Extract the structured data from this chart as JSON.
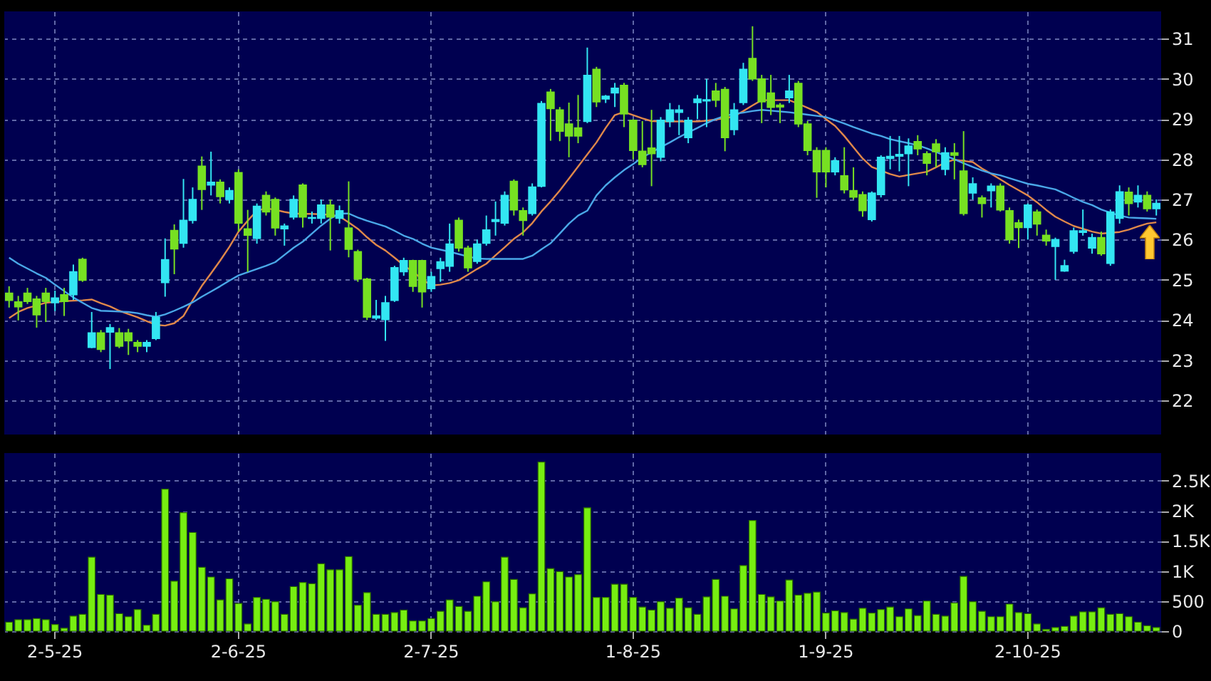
{
  "chart_data": [
    {
      "type": "candlestick",
      "categories": [
        null,
        null,
        null,
        null,
        null,
        null,
        null,
        null,
        null,
        null,
        null,
        null,
        null,
        null,
        null,
        null,
        null,
        null,
        null,
        null,
        null,
        null,
        null,
        null,
        null,
        null,
        null,
        null,
        null,
        null,
        null,
        null,
        null,
        null,
        null,
        null,
        null,
        null,
        null,
        null,
        null,
        null,
        null,
        null,
        null,
        null,
        null,
        null,
        null,
        null,
        null,
        null,
        null,
        null,
        null,
        null,
        null,
        null,
        null,
        null,
        null,
        null,
        null,
        null,
        null,
        null,
        null,
        null,
        null,
        null,
        null,
        null,
        null,
        null,
        null,
        null,
        null,
        null,
        null,
        null,
        null,
        null,
        null,
        null,
        null,
        null,
        null,
        null,
        null,
        null,
        null,
        null,
        null,
        null,
        null,
        null,
        null,
        null,
        null,
        null,
        null,
        null,
        null,
        null,
        null,
        null,
        null,
        null,
        null,
        null,
        null,
        null,
        null,
        null,
        null,
        null,
        null,
        null,
        null,
        null,
        null,
        null,
        null,
        null,
        null,
        null
      ],
      "ohlc": [
        [
          24.67,
          24.84,
          24.31,
          24.49
        ],
        [
          24.45,
          24.6,
          23.99,
          24.33
        ],
        [
          24.67,
          24.8,
          24.4,
          24.46
        ],
        [
          24.52,
          24.6,
          23.81,
          24.13
        ],
        [
          24.67,
          24.8,
          23.95,
          24.46
        ],
        [
          24.43,
          24.73,
          24.22,
          24.55
        ],
        [
          24.63,
          24.8,
          24.1,
          24.46
        ],
        [
          24.63,
          25.38,
          24.5,
          25.2
        ],
        [
          25.51,
          25.55,
          24.95,
          24.99
        ],
        [
          23.32,
          24.2,
          23.3,
          23.68
        ],
        [
          23.68,
          23.75,
          23.2,
          23.27
        ],
        [
          23.7,
          23.9,
          22.78,
          23.81
        ],
        [
          23.68,
          23.8,
          23.3,
          23.35
        ],
        [
          23.68,
          23.78,
          23.13,
          23.48
        ],
        [
          23.44,
          23.5,
          23.2,
          23.35
        ],
        [
          23.35,
          23.5,
          23.2,
          23.44
        ],
        [
          23.54,
          24.2,
          23.5,
          24.07
        ],
        [
          24.93,
          26.03,
          24.58,
          25.5
        ],
        [
          26.23,
          26.38,
          25.14,
          25.77
        ],
        [
          25.91,
          27.51,
          25.8,
          26.48
        ],
        [
          26.48,
          27.3,
          26.4,
          27.0
        ],
        [
          27.83,
          28.07,
          26.74,
          27.25
        ],
        [
          27.36,
          28.19,
          27.1,
          27.43
        ],
        [
          27.43,
          27.5,
          26.9,
          27.07
        ],
        [
          27.0,
          27.3,
          26.9,
          27.22
        ],
        [
          27.67,
          27.75,
          26.2,
          26.41
        ],
        [
          26.27,
          26.74,
          25.2,
          26.11
        ],
        [
          26.03,
          26.9,
          25.9,
          26.83
        ],
        [
          27.1,
          27.2,
          26.6,
          26.69
        ],
        [
          27.0,
          27.05,
          26.1,
          26.29
        ],
        [
          26.27,
          26.4,
          25.85,
          26.34
        ],
        [
          26.56,
          27.1,
          26.5,
          27.0
        ],
        [
          27.36,
          27.4,
          26.3,
          26.56
        ],
        [
          26.53,
          26.7,
          26.4,
          26.55
        ],
        [
          26.53,
          27.0,
          26.4,
          26.86
        ],
        [
          26.86,
          27.0,
          25.73,
          26.56
        ],
        [
          26.53,
          26.85,
          26.4,
          26.72
        ],
        [
          26.29,
          27.45,
          25.56,
          25.76
        ],
        [
          25.7,
          25.75,
          24.95,
          25.02
        ],
        [
          25.02,
          25.05,
          24.0,
          24.07
        ],
        [
          24.05,
          24.5,
          24.0,
          24.1
        ],
        [
          24.01,
          24.6,
          23.48,
          24.43
        ],
        [
          24.49,
          25.35,
          24.45,
          25.3
        ],
        [
          25.2,
          25.55,
          25.1,
          25.48
        ],
        [
          25.48,
          25.5,
          24.7,
          24.84
        ],
        [
          25.48,
          25.5,
          24.31,
          24.7
        ],
        [
          24.78,
          25.2,
          24.7,
          25.08
        ],
        [
          25.28,
          25.55,
          24.95,
          25.45
        ],
        [
          25.34,
          26.4,
          25.2,
          25.89
        ],
        [
          26.48,
          26.55,
          25.7,
          25.79
        ],
        [
          25.79,
          25.85,
          25.2,
          25.3
        ],
        [
          25.46,
          26.0,
          25.4,
          25.89
        ],
        [
          25.91,
          26.6,
          25.85,
          26.24
        ],
        [
          26.45,
          26.95,
          26.1,
          26.5
        ],
        [
          26.41,
          27.2,
          26.35,
          27.1
        ],
        [
          27.45,
          27.5,
          26.6,
          26.74
        ],
        [
          26.72,
          26.8,
          26.1,
          26.48
        ],
        [
          26.65,
          27.4,
          26.6,
          27.31
        ],
        [
          27.33,
          29.45,
          27.3,
          29.39
        ],
        [
          29.67,
          29.75,
          28.46,
          29.26
        ],
        [
          29.23,
          29.3,
          28.45,
          28.7
        ],
        [
          28.88,
          29.41,
          28.05,
          28.58
        ],
        [
          28.78,
          29.6,
          28.4,
          28.58
        ],
        [
          28.94,
          30.78,
          28.9,
          30.09
        ],
        [
          30.24,
          30.3,
          29.3,
          29.43
        ],
        [
          29.5,
          29.6,
          29.4,
          29.57
        ],
        [
          29.65,
          29.9,
          29.3,
          29.77
        ],
        [
          29.84,
          29.9,
          28.8,
          29.13
        ],
        [
          28.97,
          29.0,
          28.0,
          28.22
        ],
        [
          28.2,
          28.95,
          27.8,
          27.87
        ],
        [
          28.28,
          29.23,
          27.33,
          28.14
        ],
        [
          28.05,
          29.05,
          27.95,
          28.97
        ],
        [
          28.94,
          29.4,
          28.8,
          29.23
        ],
        [
          29.17,
          29.35,
          28.6,
          29.23
        ],
        [
          28.54,
          29.05,
          28.4,
          28.97
        ],
        [
          29.41,
          29.6,
          29.0,
          29.5
        ],
        [
          29.45,
          30.0,
          28.8,
          29.48
        ],
        [
          29.7,
          29.9,
          29.3,
          29.47
        ],
        [
          29.74,
          29.8,
          28.2,
          28.54
        ],
        [
          28.74,
          29.4,
          28.6,
          29.23
        ],
        [
          29.41,
          30.4,
          29.35,
          30.24
        ],
        [
          30.51,
          31.31,
          29.95,
          30.0
        ],
        [
          30.0,
          30.1,
          28.9,
          29.43
        ],
        [
          29.65,
          30.1,
          29.1,
          29.29
        ],
        [
          29.35,
          29.4,
          28.9,
          29.3
        ],
        [
          29.53,
          30.1,
          29.4,
          29.7
        ],
        [
          29.89,
          29.95,
          28.8,
          28.88
        ],
        [
          28.88,
          28.95,
          28.1,
          28.22
        ],
        [
          28.22,
          28.3,
          27.04,
          27.69
        ],
        [
          28.22,
          28.3,
          27.3,
          27.69
        ],
        [
          27.69,
          28.05,
          27.6,
          27.96
        ],
        [
          27.59,
          28.3,
          27.15,
          27.24
        ],
        [
          27.22,
          27.8,
          27.0,
          27.06
        ],
        [
          27.12,
          27.2,
          26.57,
          26.72
        ],
        [
          26.5,
          27.2,
          26.45,
          27.16
        ],
        [
          27.12,
          28.1,
          27.05,
          28.05
        ],
        [
          28.02,
          28.58,
          27.75,
          28.07
        ],
        [
          28.08,
          28.58,
          27.7,
          28.12
        ],
        [
          28.14,
          28.52,
          27.33,
          28.33
        ],
        [
          28.44,
          28.6,
          28.1,
          28.26
        ],
        [
          28.14,
          28.2,
          27.6,
          27.9
        ],
        [
          28.38,
          28.5,
          27.8,
          28.19
        ],
        [
          27.75,
          28.3,
          27.6,
          28.16
        ],
        [
          28.16,
          28.4,
          27.5,
          28.1
        ],
        [
          27.71,
          28.7,
          26.6,
          26.65
        ],
        [
          27.16,
          27.55,
          27.0,
          27.39
        ],
        [
          27.04,
          27.1,
          26.55,
          26.9
        ],
        [
          27.22,
          27.4,
          26.8,
          27.33
        ],
        [
          27.33,
          27.4,
          26.7,
          26.74
        ],
        [
          26.72,
          26.8,
          25.9,
          26.0
        ],
        [
          26.42,
          26.5,
          25.79,
          26.3
        ],
        [
          26.3,
          26.9,
          26.0,
          26.86
        ],
        [
          26.69,
          26.75,
          26.1,
          26.39
        ],
        [
          26.11,
          26.25,
          25.85,
          25.97
        ],
        [
          25.83,
          26.05,
          25.0,
          26.0
        ],
        [
          25.22,
          25.5,
          25.2,
          25.35
        ],
        [
          25.71,
          26.3,
          25.65,
          26.22
        ],
        [
          26.18,
          26.75,
          26.1,
          26.22
        ],
        [
          25.79,
          26.15,
          25.65,
          26.05
        ],
        [
          26.05,
          26.2,
          25.6,
          25.65
        ],
        [
          25.41,
          26.75,
          25.35,
          26.69
        ],
        [
          26.53,
          27.35,
          26.4,
          27.19
        ],
        [
          27.18,
          27.3,
          26.6,
          26.9
        ],
        [
          26.94,
          27.35,
          26.8,
          27.1
        ],
        [
          27.1,
          27.2,
          26.7,
          26.77
        ],
        [
          26.77,
          27.0,
          26.6,
          26.9
        ]
      ],
      "colors": [
        "#77e022",
        "#77e022",
        "#77e022",
        "#77e022",
        "#77e022",
        "#33e6f2",
        "#77e022",
        "#33e6f2",
        "#77e022",
        "#33e6f2",
        "#77e022",
        "#33e6f2",
        "#77e022",
        "#77e022",
        "#77e022",
        "#33e6f2",
        "#33e6f2",
        "#33e6f2",
        "#77e022",
        "#33e6f2",
        "#33e6f2",
        "#77e022",
        "#33e6f2",
        "#77e022",
        "#33e6f2",
        "#77e022",
        "#77e022",
        "#33e6f2",
        "#77e022",
        "#77e022",
        "#33e6f2",
        "#33e6f2",
        "#77e022",
        "#33e6f2",
        "#33e6f2",
        "#77e022",
        "#33e6f2",
        "#77e022",
        "#77e022",
        "#77e022",
        "#33e6f2",
        "#33e6f2",
        "#33e6f2",
        "#33e6f2",
        "#77e022",
        "#77e022",
        "#33e6f2",
        "#33e6f2",
        "#33e6f2",
        "#77e022",
        "#77e022",
        "#33e6f2",
        "#33e6f2",
        "#33e6f2",
        "#33e6f2",
        "#77e022",
        "#77e022",
        "#33e6f2",
        "#33e6f2",
        "#77e022",
        "#77e022",
        "#77e022",
        "#77e022",
        "#33e6f2",
        "#77e022",
        "#33e6f2",
        "#33e6f2",
        "#77e022",
        "#77e022",
        "#77e022",
        "#77e022",
        "#33e6f2",
        "#33e6f2",
        "#33e6f2",
        "#33e6f2",
        "#33e6f2",
        "#33e6f2",
        "#77e022",
        "#77e022",
        "#33e6f2",
        "#33e6f2",
        "#77e022",
        "#77e022",
        "#77e022",
        "#77e022",
        "#33e6f2",
        "#77e022",
        "#77e022",
        "#77e022",
        "#77e022",
        "#33e6f2",
        "#77e022",
        "#77e022",
        "#77e022",
        "#33e6f2",
        "#33e6f2",
        "#33e6f2",
        "#33e6f2",
        "#33e6f2",
        "#77e022",
        "#77e022",
        "#77e022",
        "#33e6f2",
        "#77e022",
        "#77e022",
        "#33e6f2",
        "#77e022",
        "#33e6f2",
        "#77e022",
        "#77e022",
        "#77e022",
        "#33e6f2",
        "#77e022",
        "#77e022",
        "#33e6f2",
        "#33e6f2",
        "#33e6f2",
        "#33e6f2",
        "#33e6f2",
        "#77e022",
        "#33e6f2",
        "#33e6f2",
        "#77e022",
        "#33e6f2",
        "#77e022",
        "#33e6f2"
      ],
      "series": [
        {
          "type": "line",
          "color": "#e0884a",
          "values": [
            24.05,
            24.2,
            24.3,
            24.36,
            24.43,
            24.45,
            24.47,
            24.48,
            24.49,
            24.51,
            24.42,
            24.34,
            24.23,
            24.15,
            24.07,
            23.97,
            23.88,
            23.86,
            23.92,
            24.1,
            24.49,
            24.85,
            25.16,
            25.48,
            25.82,
            26.2,
            26.47,
            26.72,
            26.78,
            26.74,
            26.69,
            26.65,
            26.64,
            26.64,
            26.63,
            26.62,
            26.58,
            26.43,
            26.27,
            26.06,
            25.87,
            25.73,
            25.55,
            25.36,
            25.2,
            25.02,
            24.86,
            24.88,
            24.92,
            24.99,
            25.13,
            25.27,
            25.4,
            25.61,
            25.81,
            26.02,
            26.18,
            26.41,
            26.7,
            26.95,
            27.22,
            27.52,
            27.82,
            28.12,
            28.42,
            28.78,
            29.1,
            29.18,
            29.1,
            29.02,
            28.95,
            28.94,
            28.94,
            28.94,
            28.94,
            28.94,
            28.96,
            28.99,
            29.02,
            29.07,
            29.2,
            29.34,
            29.47,
            29.47,
            29.47,
            29.47,
            29.38,
            29.28,
            29.18,
            29.0,
            28.83,
            28.58,
            28.3,
            28.02,
            27.81,
            27.72,
            27.63,
            27.57,
            27.61,
            27.65,
            27.69,
            27.8,
            27.92,
            27.99,
            27.96,
            27.93,
            27.77,
            27.64,
            27.5,
            27.36,
            27.23,
            27.1,
            26.93,
            26.74,
            26.57,
            26.45,
            26.34,
            26.27,
            26.2,
            26.15,
            26.17,
            26.19,
            26.25,
            26.33,
            26.4,
            26.43
          ]
        },
        {
          "type": "line",
          "color": "#4aa8e8",
          "values": [
            25.55,
            25.4,
            25.28,
            25.16,
            25.05,
            24.88,
            24.72,
            24.56,
            24.43,
            24.3,
            24.23,
            24.22,
            24.21,
            24.2,
            24.17,
            24.12,
            24.08,
            24.14,
            24.23,
            24.33,
            24.44,
            24.58,
            24.71,
            24.84,
            24.98,
            25.11,
            25.19,
            25.27,
            25.35,
            25.44,
            25.62,
            25.8,
            25.95,
            26.15,
            26.35,
            26.52,
            26.65,
            26.65,
            26.55,
            26.47,
            26.4,
            26.33,
            26.22,
            26.1,
            26.02,
            25.9,
            25.8,
            25.75,
            25.7,
            25.64,
            25.58,
            25.53,
            25.52,
            25.52,
            25.52,
            25.52,
            25.52,
            25.6,
            25.76,
            25.91,
            26.15,
            26.4,
            26.6,
            26.72,
            27.1,
            27.35,
            27.55,
            27.73,
            27.88,
            28.05,
            28.17,
            28.3,
            28.42,
            28.55,
            28.67,
            28.78,
            28.9,
            29.0,
            29.08,
            29.13,
            29.16,
            29.2,
            29.23,
            29.21,
            29.19,
            29.17,
            29.14,
            29.11,
            29.08,
            29.05,
            28.97,
            28.89,
            28.8,
            28.72,
            28.64,
            28.58,
            28.5,
            28.45,
            28.4,
            28.35,
            28.27,
            28.18,
            28.09,
            28.0,
            27.9,
            27.81,
            27.72,
            27.65,
            27.6,
            27.53,
            27.46,
            27.39,
            27.35,
            27.3,
            27.25,
            27.15,
            27.04,
            26.94,
            26.86,
            26.75,
            26.67,
            26.6,
            26.55,
            26.54,
            26.53,
            26.52
          ]
        }
      ],
      "ylim": [
        21.15,
        31.68
      ],
      "yticks": [
        22,
        23,
        24,
        25,
        26,
        27,
        28,
        29,
        30,
        31
      ],
      "grid": true,
      "tick_labels": "y"
    },
    {
      "type": "bar",
      "categories": [
        null,
        null,
        null,
        null,
        null,
        "2-5-25",
        null,
        null,
        null,
        null,
        null,
        null,
        null,
        null,
        null,
        null,
        null,
        null,
        null,
        null,
        null,
        null,
        null,
        null,
        null,
        "2-6-25",
        null,
        null,
        null,
        null,
        null,
        null,
        null,
        null,
        null,
        null,
        null,
        null,
        null,
        null,
        null,
        null,
        null,
        null,
        null,
        null,
        "2-7-25",
        null,
        null,
        null,
        null,
        null,
        null,
        null,
        null,
        null,
        null,
        null,
        null,
        null,
        null,
        null,
        null,
        null,
        null,
        null,
        null,
        null,
        "1-8-25",
        null,
        null,
        null,
        null,
        null,
        null,
        null,
        null,
        null,
        null,
        null,
        null,
        null,
        null,
        null,
        null,
        null,
        null,
        null,
        null,
        "1-9-25",
        null,
        null,
        null,
        null,
        null,
        null,
        null,
        null,
        null,
        null,
        null,
        null,
        null,
        null,
        null,
        null,
        null,
        null,
        null,
        null,
        null,
        "2-10-25",
        null,
        null,
        null,
        null,
        null,
        null,
        null,
        null,
        null,
        null,
        null,
        null,
        null,
        null
      ],
      "values": [
        150,
        190,
        190,
        210,
        190,
        110,
        50,
        250,
        280,
        1230,
        610,
        600,
        290,
        240,
        360,
        100,
        280,
        2360,
        830,
        1970,
        1640,
        1060,
        900,
        520,
        870,
        460,
        120,
        560,
        530,
        490,
        280,
        740,
        810,
        790,
        1120,
        1020,
        1020,
        1240,
        430,
        640,
        280,
        280,
        310,
        350,
        170,
        170,
        210,
        330,
        520,
        410,
        330,
        580,
        820,
        490,
        1230,
        860,
        390,
        620,
        2810,
        1040,
        990,
        900,
        940,
        2050,
        560,
        560,
        780,
        780,
        560,
        400,
        350,
        490,
        380,
        550,
        390,
        280,
        570,
        860,
        580,
        370,
        1090,
        1840,
        610,
        570,
        500,
        850,
        600,
        630,
        650,
        300,
        340,
        310,
        200,
        380,
        300,
        360,
        400,
        240,
        370,
        260,
        500,
        280,
        250,
        470,
        910,
        490,
        330,
        240,
        240,
        450,
        310,
        290,
        120,
        30,
        60,
        80,
        250,
        320,
        320,
        390,
        280,
        290,
        240,
        150,
        90,
        60
      ],
      "color": "#77ee11",
      "ylim": [
        0,
        2960
      ],
      "yticks": [
        0,
        500,
        {
          "value": 1000,
          "label": "1K"
        },
        {
          "value": 1500,
          "label": "1.5K"
        },
        {
          "value": 2000,
          "label": "2K"
        },
        {
          "value": 2500,
          "label": "2.5K"
        }
      ],
      "grid": true
    }
  ]
}
